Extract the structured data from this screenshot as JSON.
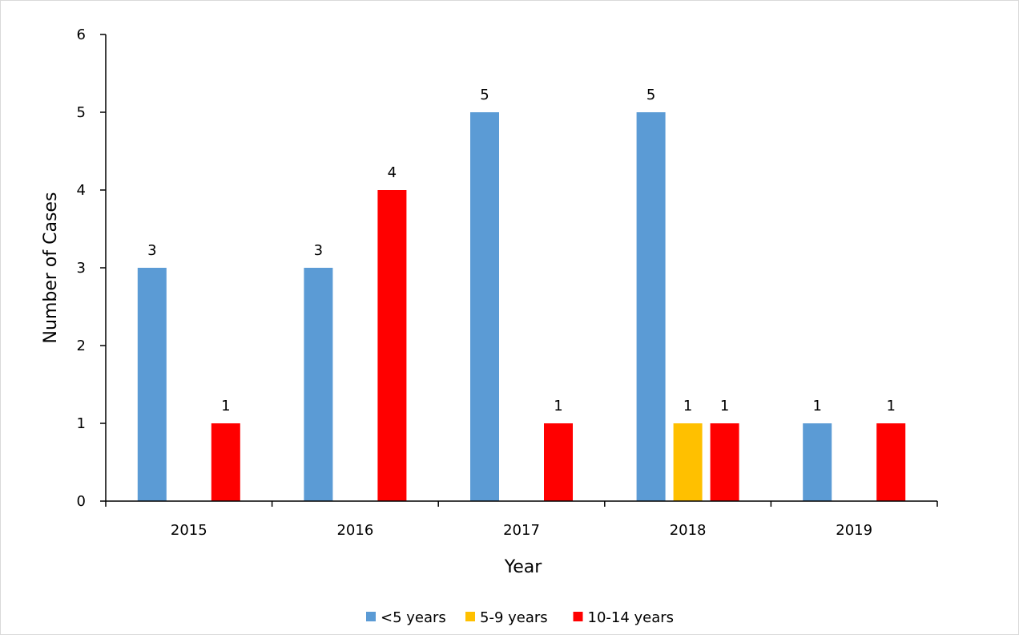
{
  "chart_data": {
    "type": "bar",
    "title": "",
    "xlabel": "Year",
    "ylabel": "Number of Cases",
    "categories": [
      "2015",
      "2016",
      "2017",
      "2018",
      "2019"
    ],
    "series": [
      {
        "name": "<5 years",
        "color": "#5B9BD5",
        "values": [
          3,
          3,
          5,
          5,
          1
        ]
      },
      {
        "name": "5-9 years",
        "color": "#FFC000",
        "values": [
          0,
          0,
          0,
          1,
          0
        ]
      },
      {
        "name": "10-14 years",
        "color": "#FF0000",
        "values": [
          1,
          4,
          1,
          1,
          1
        ]
      }
    ],
    "ylim": [
      0,
      6
    ],
    "yticks": [
      "0",
      "1",
      "2",
      "3",
      "4",
      "5",
      "6"
    ],
    "grid": false,
    "legend_position": "bottom"
  }
}
